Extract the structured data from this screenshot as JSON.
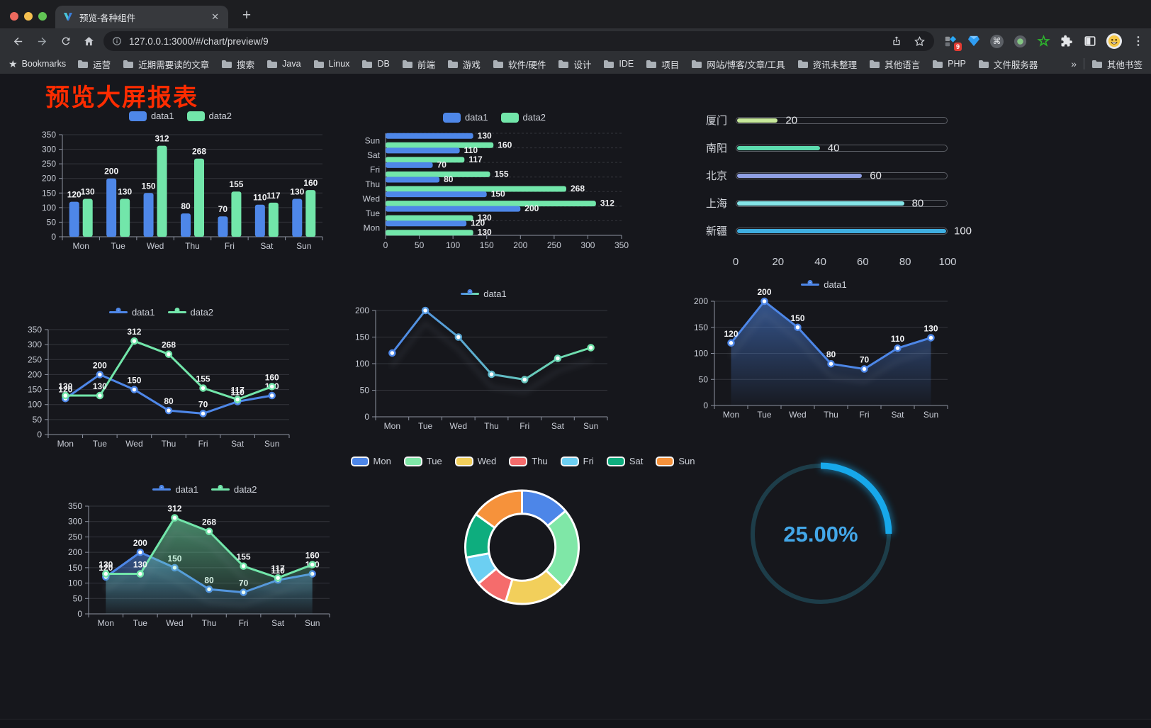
{
  "browser": {
    "tab_title": "预览-各种组件",
    "url": "127.0.0.1:3000/#/chart/preview/9",
    "close_glyph": "✕",
    "new_tab_glyph": "+",
    "extension_badge": "9",
    "bookmarks_label": "Bookmarks",
    "bookmarks": [
      "运营",
      "近期需要读的文章",
      "搜索",
      "Java",
      "Linux",
      "DB",
      "前端",
      "游戏",
      "软件/硬件",
      "设计",
      "IDE",
      "项目",
      "网站/博客/文章/工具",
      "资讯未整理",
      "其他语言",
      "PHP",
      "文件服务器"
    ],
    "bookmarks_overflow": "»",
    "other_bookmarks": "其他书签",
    "menu_glyph": "⋮"
  },
  "page": {
    "title": "预览大屏报表",
    "title_color": "#fe2c00",
    "background": "#16171c"
  },
  "colors": {
    "data1_blue": "#4E87E8",
    "data2_green": "#72E6AA",
    "grid": "#33353b",
    "axis": "#8d93a1",
    "tick_label": "#c9cdd6",
    "value_label": "#f2f3f5"
  },
  "chart_data": [
    {
      "id": "bar-vertical",
      "type": "bar",
      "title": "",
      "categories": [
        "Mon",
        "Tue",
        "Wed",
        "Thu",
        "Fri",
        "Sat",
        "Sun"
      ],
      "series": [
        {
          "name": "data1",
          "color": "#4E87E8",
          "values": [
            120,
            200,
            150,
            80,
            70,
            110,
            130
          ]
        },
        {
          "name": "data2",
          "color": "#72E6AA",
          "values": [
            130,
            130,
            312,
            268,
            155,
            117,
            160
          ]
        }
      ],
      "ylim": [
        0,
        350
      ],
      "ytick_step": 50,
      "value_labels": true,
      "legend_position": "top",
      "grid": true
    },
    {
      "id": "bar-horizontal",
      "type": "bar",
      "orientation": "horizontal",
      "categories": [
        "Mon",
        "Tue",
        "Wed",
        "Thu",
        "Fri",
        "Sat",
        "Sun"
      ],
      "series": [
        {
          "name": "data1",
          "color": "#4E87E8",
          "values": [
            120,
            200,
            150,
            80,
            70,
            110,
            130
          ]
        },
        {
          "name": "data2",
          "color": "#72E6AA",
          "values": [
            130,
            130,
            312,
            268,
            155,
            117,
            160
          ]
        }
      ],
      "xlim": [
        0,
        350
      ],
      "xtick_step": 50,
      "value_labels": true,
      "legend_position": "top",
      "grid": true
    },
    {
      "id": "progress",
      "type": "bar",
      "orientation": "horizontal-progress",
      "categories": [
        "厦门",
        "南阳",
        "北京",
        "上海",
        "新疆"
      ],
      "values": [
        20,
        40,
        60,
        80,
        100
      ],
      "colors": [
        "#C7E89A",
        "#5CDBAE",
        "#8F9FE3",
        "#85E5E8",
        "#3FAEE0"
      ],
      "xlim": [
        0,
        100
      ],
      "xticks": [
        0,
        20,
        40,
        60,
        80,
        100
      ],
      "value_labels": true
    },
    {
      "id": "line-basic",
      "type": "line",
      "categories": [
        "Mon",
        "Tue",
        "Wed",
        "Thu",
        "Fri",
        "Sat",
        "Sun"
      ],
      "series": [
        {
          "name": "data1",
          "color": "#4E87E8",
          "values": [
            120,
            200,
            150,
            80,
            70,
            110,
            130
          ]
        },
        {
          "name": "data2",
          "color": "#72E6AA",
          "values": [
            130,
            130,
            312,
            268,
            155,
            117,
            160
          ]
        }
      ],
      "ylim": [
        0,
        350
      ],
      "ytick_step": 50,
      "value_labels": true,
      "legend_position": "top",
      "grid": true
    },
    {
      "id": "line-gradient",
      "type": "line",
      "categories": [
        "Mon",
        "Tue",
        "Wed",
        "Thu",
        "Fri",
        "Sat",
        "Sun"
      ],
      "series": [
        {
          "name": "data1",
          "gradient": [
            "#4E87E8",
            "#72E6AA"
          ],
          "values": [
            120,
            200,
            150,
            80,
            70,
            110,
            130
          ]
        }
      ],
      "ylim": [
        0,
        200
      ],
      "ytick_step": 50,
      "value_labels": false,
      "echo": true,
      "legend_position": "top",
      "grid": true
    },
    {
      "id": "area-single",
      "type": "area",
      "categories": [
        "Mon",
        "Tue",
        "Wed",
        "Thu",
        "Fri",
        "Sat",
        "Sun"
      ],
      "series": [
        {
          "name": "data1",
          "color": "#4E87E8",
          "area": true,
          "values": [
            120,
            200,
            150,
            80,
            70,
            110,
            130
          ]
        }
      ],
      "ylim": [
        0,
        200
      ],
      "ytick_step": 50,
      "value_labels": true,
      "echo": true,
      "legend_position": "top",
      "grid": true
    },
    {
      "id": "area-double",
      "type": "area",
      "categories": [
        "Mon",
        "Tue",
        "Wed",
        "Thu",
        "Fri",
        "Sat",
        "Sun"
      ],
      "series": [
        {
          "name": "data1",
          "color": "#4E87E8",
          "area": true,
          "values": [
            120,
            200,
            150,
            80,
            70,
            110,
            130
          ]
        },
        {
          "name": "data2",
          "color": "#72E6AA",
          "area": true,
          "values": [
            130,
            130,
            312,
            268,
            155,
            117,
            160
          ]
        }
      ],
      "ylim": [
        0,
        350
      ],
      "ytick_step": 50,
      "value_labels": true,
      "echo": true,
      "legend_position": "top",
      "grid": true
    },
    {
      "id": "pie-donut",
      "type": "pie",
      "categories": [
        "Mon",
        "Tue",
        "Wed",
        "Thu",
        "Fri",
        "Sat",
        "Sun"
      ],
      "values": [
        120,
        200,
        150,
        80,
        70,
        110,
        130
      ],
      "colors": [
        "#4D86E8",
        "#7FE7A7",
        "#F2CF5B",
        "#F56C6C",
        "#6CCFF2",
        "#0EAD7E",
        "#F6923B"
      ],
      "inner_radius_ratio": 0.59,
      "legend_position": "top"
    },
    {
      "id": "gauge",
      "type": "gauge",
      "value": 25,
      "label": "25.00%",
      "color": "#17A8EA",
      "track_color": "#1D3D49",
      "text_color": "#43A7E8"
    }
  ]
}
